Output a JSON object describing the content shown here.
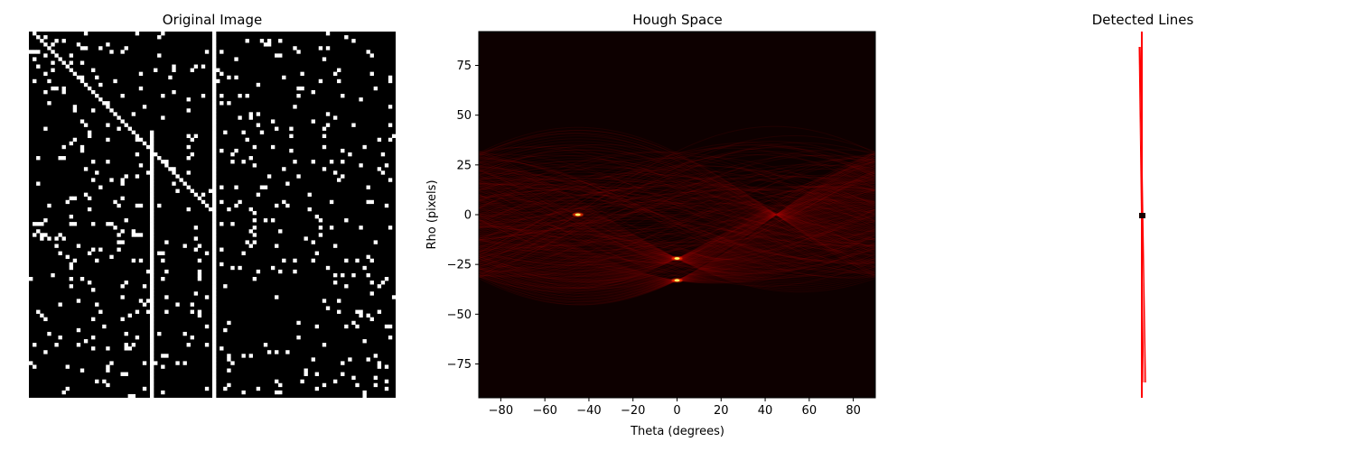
{
  "chart_data": [
    {
      "type": "image",
      "title": "Original Image",
      "description_seed": 7,
      "grid_size": [
        100,
        100
      ],
      "lines": [
        {
          "kind": "diagonal",
          "from": [
            1,
            0
          ],
          "to": [
            50,
            50
          ]
        },
        {
          "kind": "vertical",
          "x": 33,
          "y_range": [
            27,
            100
          ]
        },
        {
          "kind": "vertical",
          "x": 50,
          "y_range": [
            0,
            100
          ]
        }
      ],
      "noise_density": 0.05
    },
    {
      "type": "heatmap",
      "title": "Hough Space",
      "xlabel": "Theta (degrees)",
      "ylabel": "Rho (pixels)",
      "xlim": [
        -90,
        90
      ],
      "ylim": [
        -92,
        92
      ],
      "xticks": [
        -80,
        -60,
        -40,
        -20,
        0,
        20,
        40,
        60,
        80
      ],
      "yticks": [
        75,
        50,
        25,
        0,
        -25,
        -50,
        -75
      ],
      "colormap": "hot",
      "peaks": [
        {
          "theta": -45,
          "rho": 0
        },
        {
          "theta": 0,
          "rho": -22
        },
        {
          "theta": 0,
          "rho": -33
        }
      ]
    },
    {
      "type": "line",
      "title": "Detected Lines",
      "line_color": "#ff0000",
      "marker_color": "#000000"
    }
  ],
  "titles": {
    "original": "Original Image",
    "hough": "Hough Space",
    "detected": "Detected Lines"
  },
  "axes": {
    "xlabel": "Theta (degrees)",
    "ylabel": "Rho (pixels)"
  }
}
